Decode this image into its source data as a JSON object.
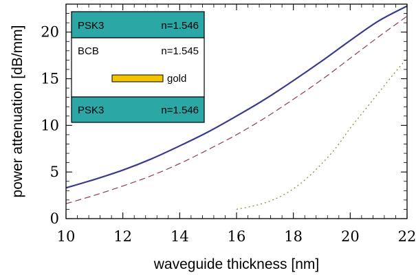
{
  "chart_data": {
    "type": "line",
    "xlabel": "waveguide thickness [nm]",
    "ylabel": "power attenuation [dB/mm]",
    "xlim": [
      10,
      22
    ],
    "ylim": [
      0,
      23
    ],
    "xticks": [
      "10",
      "12",
      "14",
      "16",
      "18",
      "20",
      "22"
    ],
    "yticks": [
      "0",
      "5",
      "10",
      "15",
      "20"
    ],
    "grid": false,
    "series": [
      {
        "style": "solid",
        "color": "#3a3a8c",
        "x": [
          10,
          11,
          12,
          13,
          14,
          15,
          16,
          17,
          18,
          19,
          20,
          21,
          22
        ],
        "y": [
          3.3,
          4.2,
          5.2,
          6.4,
          7.8,
          9.3,
          11.0,
          12.8,
          14.8,
          16.9,
          19.1,
          21.2,
          22.8
        ]
      },
      {
        "style": "dashed",
        "color": "#8c3a5c",
        "x": [
          10,
          11,
          12,
          13,
          14,
          15,
          16,
          17,
          18,
          19,
          20,
          21,
          22
        ],
        "y": [
          1.6,
          2.5,
          3.5,
          4.6,
          5.9,
          7.4,
          9.0,
          10.8,
          12.8,
          14.9,
          17.2,
          19.5,
          21.7
        ]
      },
      {
        "style": "dotted",
        "color": "#8c8c3a",
        "x": [
          16,
          16.5,
          17,
          17.5,
          18,
          18.5,
          19,
          19.5,
          20,
          20.5,
          21,
          21.5,
          22
        ],
        "y": [
          1.0,
          1.3,
          1.7,
          2.3,
          3.2,
          4.4,
          5.9,
          7.6,
          9.7,
          11.6,
          13.5,
          15.4,
          17.2
        ]
      }
    ],
    "inset": {
      "top_layer": {
        "name": "PSK3",
        "index": "n=1.546",
        "color": "#2ba7a5"
      },
      "core_layer": {
        "name": "BCB",
        "index": "n=1.545",
        "color": "#ffffff"
      },
      "strip": {
        "label": "gold",
        "color": "#f2c400"
      },
      "bottom_layer": {
        "name": "PSK3",
        "index": "n=1.546",
        "color": "#2ba7a5"
      }
    }
  }
}
